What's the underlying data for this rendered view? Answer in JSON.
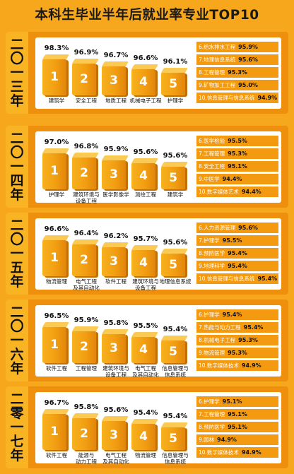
{
  "title": "本科生毕业半年后就业率专业TOP10",
  "accent_color": "#f39a10",
  "background_color": "#f7a71c",
  "years": [
    {
      "year_chars": [
        "二",
        "〇",
        "一",
        "三",
        "年"
      ],
      "top5": [
        {
          "rank": "1",
          "pct": "98.3%",
          "major": "建筑学"
        },
        {
          "rank": "2",
          "pct": "96.9%",
          "major": "安全工程"
        },
        {
          "rank": "3",
          "pct": "96.7%",
          "major": "地质工程"
        },
        {
          "rank": "4",
          "pct": "96.6%",
          "major": "机械电子工程"
        },
        {
          "rank": "5",
          "pct": "96.1%",
          "major": "护理学"
        }
      ],
      "rest": [
        {
          "label": "6.给水排水工程",
          "value": "95.9%"
        },
        {
          "label": "7.地理信息系统",
          "value": "95.6%"
        },
        {
          "label": "8.工程管理",
          "value": "95.3%"
        },
        {
          "label": "9.矿物加工工程",
          "value": "95.0%"
        },
        {
          "label": "10.信息管理与信息系统",
          "value": "94.9%"
        }
      ]
    },
    {
      "year_chars": [
        "二",
        "〇",
        "一",
        "四",
        "年"
      ],
      "top5": [
        {
          "rank": "1",
          "pct": "97.0%",
          "major": "护理学"
        },
        {
          "rank": "2",
          "pct": "96.8%",
          "major": "建筑环境与\n设备工程"
        },
        {
          "rank": "3",
          "pct": "95.9%",
          "major": "医学影像学"
        },
        {
          "rank": "4",
          "pct": "95.6%",
          "major": "测绘工程"
        },
        {
          "rank": "5",
          "pct": "95.6%",
          "major": "建筑学"
        }
      ],
      "rest": [
        {
          "label": "6.医学检验",
          "value": "95.5%"
        },
        {
          "label": "7.工程管理",
          "value": "95.3%"
        },
        {
          "label": "8.安全工程",
          "value": "95.1%"
        },
        {
          "label": "9.中医学",
          "value": "94.4%"
        },
        {
          "label": "10.数字媒体艺术",
          "value": "94.4%"
        }
      ]
    },
    {
      "year_chars": [
        "二",
        "〇",
        "一",
        "五",
        "年"
      ],
      "top5": [
        {
          "rank": "1",
          "pct": "96.6%",
          "major": "物流管理"
        },
        {
          "rank": "2",
          "pct": "96.4%",
          "major": "电气工程\n及其自动化"
        },
        {
          "rank": "3",
          "pct": "96.2%",
          "major": "软件工程"
        },
        {
          "rank": "4",
          "pct": "95.7%",
          "major": "建筑环境与\n设备工程"
        },
        {
          "rank": "5",
          "pct": "95.6%",
          "major": "地理信息系统"
        }
      ],
      "rest": [
        {
          "label": "6.人力资源管理",
          "value": "95.6%"
        },
        {
          "label": "7.护理学",
          "value": "95.5%"
        },
        {
          "label": "8.预防医学",
          "value": "95.4%"
        },
        {
          "label": "9.地理科学",
          "value": "95.4%"
        },
        {
          "label": "10.信息管理与信息系统",
          "value": "95.4%"
        }
      ]
    },
    {
      "year_chars": [
        "二",
        "〇",
        "一",
        "六",
        "年"
      ],
      "top5": [
        {
          "rank": "1",
          "pct": "96.5%",
          "major": "软件工程"
        },
        {
          "rank": "2",
          "pct": "95.9%",
          "major": "工程管理"
        },
        {
          "rank": "3",
          "pct": "95.8%",
          "major": "建筑环境与\n设备工程"
        },
        {
          "rank": "4",
          "pct": "95.5%",
          "major": "电气工程\n及其自动化"
        },
        {
          "rank": "5",
          "pct": "95.4%",
          "major": "信息管理与\n信息系统"
        }
      ],
      "rest": [
        {
          "label": "6.护理学",
          "value": "95.4%"
        },
        {
          "label": "7.热能与动力工程",
          "value": "95.4%"
        },
        {
          "label": "8.机械电子工程",
          "value": "95.3%"
        },
        {
          "label": "9.物流管理",
          "value": "95.3%"
        },
        {
          "label": "10.数字媒体技术",
          "value": "94.9%"
        }
      ]
    },
    {
      "year_chars": [
        "二",
        "零",
        "一",
        "七",
        "年"
      ],
      "top5": [
        {
          "rank": "1",
          "pct": "96.7%",
          "major": "软件工程"
        },
        {
          "rank": "2",
          "pct": "95.8%",
          "major": "能源与\n动力工程"
        },
        {
          "rank": "3",
          "pct": "95.6%",
          "major": "电气工程\n及其自动化"
        },
        {
          "rank": "4",
          "pct": "95.4%",
          "major": "物流管理"
        },
        {
          "rank": "5",
          "pct": "95.4%",
          "major": "信息管理与\n信息系统"
        }
      ],
      "rest": [
        {
          "label": "6.护理学",
          "value": "95.1%"
        },
        {
          "label": "7.工程管理",
          "value": "95.1%"
        },
        {
          "label": "8.预防医学",
          "value": "95.1%"
        },
        {
          "label": "9.园林",
          "value": "94.9%"
        },
        {
          "label": "10.数字媒体技术",
          "value": "94.9%"
        }
      ]
    }
  ]
}
